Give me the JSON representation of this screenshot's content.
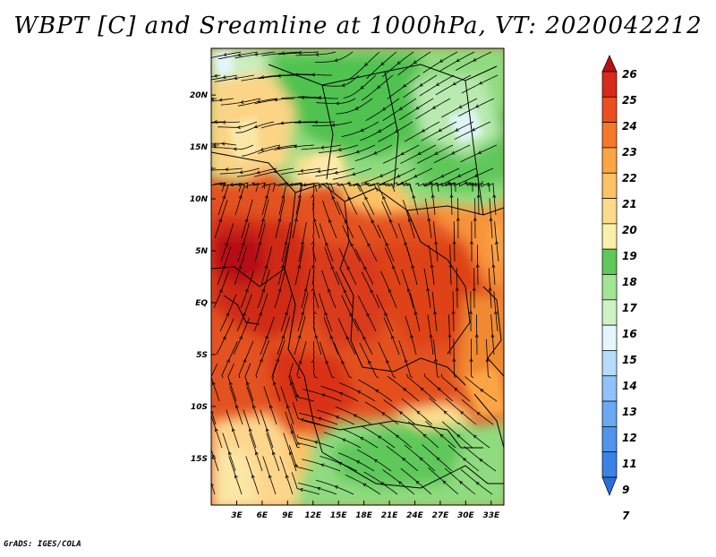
{
  "title": "WBPT [C] and Sreamline at 1000hPa, VT: 2020042212",
  "credit": "GrADS: IGES/COLA",
  "map": {
    "lon_labels": [
      "3E",
      "6E",
      "9E",
      "12E",
      "15E",
      "18E",
      "21E",
      "24E",
      "27E",
      "30E",
      "33E"
    ],
    "lat_labels": [
      "20N",
      "15N",
      "10N",
      "5N",
      "EQ",
      "5S",
      "10S",
      "15S"
    ],
    "lon_values": [
      3,
      6,
      9,
      12,
      15,
      18,
      21,
      24,
      27,
      30,
      33
    ],
    "lat_values": [
      20,
      15,
      10,
      5,
      0,
      -5,
      -10,
      -15
    ],
    "lon_range": [
      0,
      34.5
    ],
    "lat_range": [
      -19.5,
      24.5
    ]
  },
  "colorbar": {
    "labels": [
      "7",
      "9",
      "11",
      "12",
      "13",
      "14",
      "15",
      "16",
      "17",
      "18",
      "19",
      "20",
      "21",
      "22",
      "23",
      "24",
      "25",
      "26"
    ],
    "colors": [
      "#2a6fd8",
      "#3b82e6",
      "#4f95ee",
      "#6aa9f3",
      "#8fc2f8",
      "#b7dcfb",
      "#e4f5fb",
      "#cdf2c4",
      "#a4e595",
      "#5ec85a",
      "#fbf0a9",
      "#fddb8a",
      "#fcc265",
      "#fba545",
      "#f6782c",
      "#ec4f1f",
      "#d82a1a",
      "#b81013"
    ]
  }
}
